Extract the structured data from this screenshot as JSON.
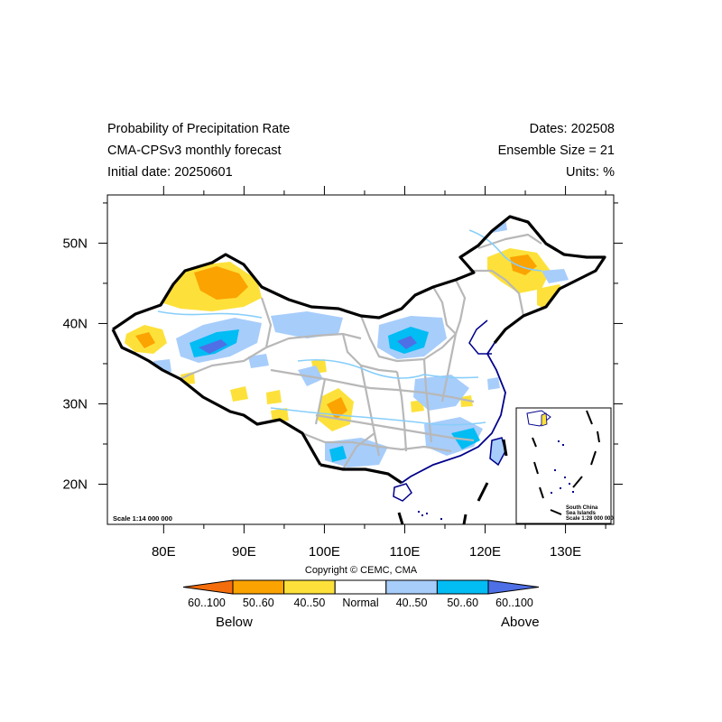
{
  "header": {
    "left": [
      "Probability of Precipitation Rate",
      "CMA-CPSv3 monthly forecast",
      "Initial date: 20250601"
    ],
    "right": [
      "Dates: 202508",
      "Ensemble Size = 21",
      "Units: %"
    ]
  },
  "map": {
    "lat_range": [
      15,
      56
    ],
    "lon_range": [
      73,
      136
    ],
    "lat_ticks": [
      "20N",
      "30N",
      "40N",
      "50N"
    ],
    "lon_ticks": [
      "80E",
      "90E",
      "100E",
      "110E",
      "120E",
      "130E"
    ],
    "scale_label": "Scale 1:14 000 000",
    "inset_lines": [
      "South China",
      "Sea Islands",
      "Scale 1:28 000 000"
    ]
  },
  "copyright": "Copyright © CEMC, CMA",
  "colorbar": {
    "labels": [
      "60..100",
      "50..60",
      "40..50",
      "Normal",
      "40..50",
      "50..60",
      "60..100"
    ],
    "colors": [
      "#f46d0c",
      "#fba300",
      "#fde13a",
      "#ffffff",
      "#a7cdfb",
      "#02bcf4",
      "#4f6fe6"
    ],
    "below_label": "Below",
    "above_label": "Above"
  },
  "legend_colors": {
    "border": "#000000",
    "province_lines": "#b8b8b8",
    "coast_and_rivers": "#00008b",
    "inland_rivers": "#87cefa"
  }
}
